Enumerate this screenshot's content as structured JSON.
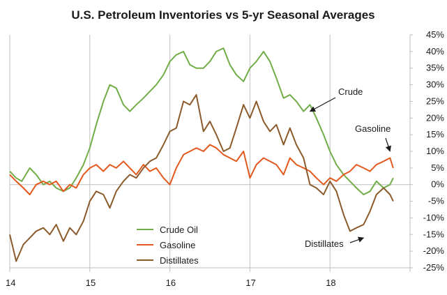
{
  "chart_data": {
    "type": "line",
    "title": "U.S. Petroleum Inventories vs 5-yr Seasonal Averages",
    "xlabel": "",
    "ylabel": "",
    "x_ticks": [
      "14",
      "15",
      "16",
      "17",
      "18"
    ],
    "xlim": [
      2014.0,
      2019.0
    ],
    "y_ticks": [
      "45%",
      "40%",
      "35%",
      "30%",
      "25%",
      "20%",
      "15%",
      "10%",
      "5%",
      "0%",
      "-5%",
      "-10%",
      "-15%",
      "-20%",
      "-25%"
    ],
    "ylim": [
      -25,
      45
    ],
    "grid": false,
    "legend_position": "lower-center",
    "series": [
      {
        "name": "Crude Oil",
        "color": "#70ad47",
        "points": [
          [
            2014.0,
            4
          ],
          [
            2014.08,
            2
          ],
          [
            2014.15,
            1
          ],
          [
            2014.25,
            5
          ],
          [
            2014.33,
            3
          ],
          [
            2014.42,
            0
          ],
          [
            2014.5,
            1
          ],
          [
            2014.58,
            -1
          ],
          [
            2014.67,
            -2
          ],
          [
            2014.75,
            -1
          ],
          [
            2014.83,
            2
          ],
          [
            2014.92,
            6
          ],
          [
            2015.0,
            11
          ],
          [
            2015.08,
            18
          ],
          [
            2015.17,
            25
          ],
          [
            2015.25,
            30
          ],
          [
            2015.33,
            29
          ],
          [
            2015.42,
            24
          ],
          [
            2015.5,
            22
          ],
          [
            2015.58,
            24
          ],
          [
            2015.67,
            26
          ],
          [
            2015.75,
            28
          ],
          [
            2015.83,
            30
          ],
          [
            2015.92,
            33
          ],
          [
            2016.0,
            37
          ],
          [
            2016.08,
            39
          ],
          [
            2016.17,
            40
          ],
          [
            2016.25,
            36
          ],
          [
            2016.33,
            35
          ],
          [
            2016.42,
            35
          ],
          [
            2016.5,
            37
          ],
          [
            2016.58,
            40
          ],
          [
            2016.67,
            41
          ],
          [
            2016.75,
            36
          ],
          [
            2016.83,
            33
          ],
          [
            2016.92,
            31
          ],
          [
            2017.0,
            35
          ],
          [
            2017.08,
            37
          ],
          [
            2017.17,
            40
          ],
          [
            2017.25,
            37
          ],
          [
            2017.33,
            32
          ],
          [
            2017.42,
            26
          ],
          [
            2017.5,
            27
          ],
          [
            2017.58,
            25
          ],
          [
            2017.67,
            22
          ],
          [
            2017.75,
            24
          ],
          [
            2017.83,
            20
          ],
          [
            2017.92,
            15
          ],
          [
            2018.0,
            10
          ],
          [
            2018.08,
            6
          ],
          [
            2018.17,
            3
          ],
          [
            2018.25,
            1
          ],
          [
            2018.33,
            -1
          ],
          [
            2018.42,
            -3
          ],
          [
            2018.5,
            -2
          ],
          [
            2018.58,
            1
          ],
          [
            2018.67,
            -1
          ],
          [
            2018.75,
            0
          ],
          [
            2018.79,
            2
          ]
        ]
      },
      {
        "name": "Gasoline",
        "color": "#e2581d",
        "points": [
          [
            2014.0,
            3
          ],
          [
            2014.08,
            1
          ],
          [
            2014.17,
            -1
          ],
          [
            2014.25,
            -3
          ],
          [
            2014.33,
            0
          ],
          [
            2014.42,
            1
          ],
          [
            2014.5,
            0
          ],
          [
            2014.58,
            1
          ],
          [
            2014.67,
            -2
          ],
          [
            2014.75,
            0
          ],
          [
            2014.83,
            -1
          ],
          [
            2014.92,
            3
          ],
          [
            2015.0,
            5
          ],
          [
            2015.08,
            6
          ],
          [
            2015.17,
            4
          ],
          [
            2015.25,
            6
          ],
          [
            2015.33,
            5
          ],
          [
            2015.42,
            7
          ],
          [
            2015.5,
            5
          ],
          [
            2015.58,
            3
          ],
          [
            2015.67,
            6
          ],
          [
            2015.75,
            4
          ],
          [
            2015.83,
            5
          ],
          [
            2015.92,
            2
          ],
          [
            2016.0,
            0
          ],
          [
            2016.08,
            5
          ],
          [
            2016.17,
            9
          ],
          [
            2016.25,
            10
          ],
          [
            2016.33,
            11
          ],
          [
            2016.42,
            10
          ],
          [
            2016.5,
            12
          ],
          [
            2016.58,
            11
          ],
          [
            2016.67,
            9
          ],
          [
            2016.75,
            8
          ],
          [
            2016.83,
            7
          ],
          [
            2016.92,
            10
          ],
          [
            2017.0,
            2
          ],
          [
            2017.08,
            6
          ],
          [
            2017.17,
            8
          ],
          [
            2017.25,
            7
          ],
          [
            2017.33,
            6
          ],
          [
            2017.42,
            3
          ],
          [
            2017.5,
            8
          ],
          [
            2017.58,
            6
          ],
          [
            2017.67,
            5
          ],
          [
            2017.75,
            4
          ],
          [
            2017.83,
            2
          ],
          [
            2017.92,
            0
          ],
          [
            2018.0,
            2
          ],
          [
            2018.08,
            1
          ],
          [
            2018.17,
            3
          ],
          [
            2018.25,
            4
          ],
          [
            2018.33,
            6
          ],
          [
            2018.42,
            5
          ],
          [
            2018.5,
            4
          ],
          [
            2018.58,
            6
          ],
          [
            2018.67,
            7
          ],
          [
            2018.75,
            8
          ],
          [
            2018.79,
            5
          ]
        ]
      },
      {
        "name": "Distillates",
        "color": "#8b5a2b",
        "points": [
          [
            2014.0,
            -15
          ],
          [
            2014.04,
            -19
          ],
          [
            2014.08,
            -23
          ],
          [
            2014.17,
            -18
          ],
          [
            2014.25,
            -16
          ],
          [
            2014.33,
            -14
          ],
          [
            2014.42,
            -13
          ],
          [
            2014.5,
            -15
          ],
          [
            2014.58,
            -12
          ],
          [
            2014.67,
            -17
          ],
          [
            2014.75,
            -13
          ],
          [
            2014.83,
            -15
          ],
          [
            2014.92,
            -11
          ],
          [
            2015.0,
            -5
          ],
          [
            2015.08,
            -2
          ],
          [
            2015.17,
            -3
          ],
          [
            2015.25,
            -7
          ],
          [
            2015.33,
            -2
          ],
          [
            2015.42,
            1
          ],
          [
            2015.5,
            3
          ],
          [
            2015.58,
            2
          ],
          [
            2015.67,
            5
          ],
          [
            2015.75,
            7
          ],
          [
            2015.83,
            8
          ],
          [
            2015.92,
            12
          ],
          [
            2016.0,
            16
          ],
          [
            2016.08,
            17
          ],
          [
            2016.17,
            25
          ],
          [
            2016.25,
            24
          ],
          [
            2016.33,
            27
          ],
          [
            2016.42,
            16
          ],
          [
            2016.5,
            19
          ],
          [
            2016.58,
            15
          ],
          [
            2016.67,
            10
          ],
          [
            2016.75,
            11
          ],
          [
            2016.83,
            17
          ],
          [
            2016.92,
            24
          ],
          [
            2017.0,
            20
          ],
          [
            2017.08,
            25
          ],
          [
            2017.17,
            19
          ],
          [
            2017.25,
            16
          ],
          [
            2017.33,
            18
          ],
          [
            2017.42,
            12
          ],
          [
            2017.5,
            17
          ],
          [
            2017.58,
            12
          ],
          [
            2017.67,
            8
          ],
          [
            2017.75,
            0
          ],
          [
            2017.83,
            -1
          ],
          [
            2017.92,
            -3
          ],
          [
            2018.0,
            1
          ],
          [
            2018.08,
            -2
          ],
          [
            2018.17,
            -9
          ],
          [
            2018.25,
            -14
          ],
          [
            2018.33,
            -13
          ],
          [
            2018.42,
            -12
          ],
          [
            2018.5,
            -8
          ],
          [
            2018.58,
            -3
          ],
          [
            2018.67,
            -1
          ],
          [
            2018.75,
            -3
          ],
          [
            2018.79,
            -5
          ]
        ]
      }
    ],
    "annotations": [
      {
        "text": "Crude",
        "target": [
          2017.75,
          22
        ]
      },
      {
        "text": "Gasoline",
        "target": [
          2018.75,
          10
        ]
      },
      {
        "text": "Distillates",
        "target": [
          2018.42,
          -16
        ]
      }
    ]
  }
}
